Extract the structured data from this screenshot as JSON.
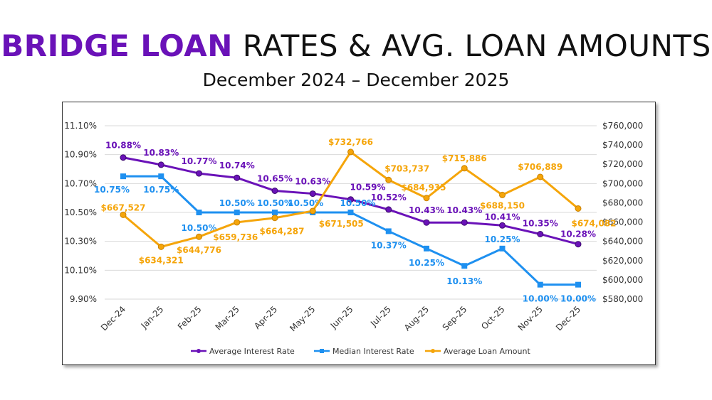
{
  "title": {
    "highlight": "BRIDGE LOAN",
    "rest": "RATES & AVG. LOAN AMOUNTS"
  },
  "subtitle": "December 2024 – December 2025",
  "chart_data": {
    "type": "line",
    "categories": [
      "Dec-24",
      "Jan-25",
      "Feb-25",
      "Mar-25",
      "Apr-25",
      "May-25",
      "Jun-25",
      "Jul-25",
      "Aug-25",
      "Sep-25",
      "Oct-25",
      "Nov-25",
      "Dec-25"
    ],
    "left_axis": {
      "min": 9.9,
      "max": 11.1,
      "step": 0.2,
      "ticks": [
        "9.90%",
        "10.10%",
        "10.30%",
        "10.50%",
        "10.70%",
        "10.90%",
        "11.10%"
      ]
    },
    "right_axis": {
      "min": 580000,
      "max": 760000,
      "step": 20000,
      "ticks": [
        "$580,000",
        "$600,000",
        "$620,000",
        "$640,000",
        "$660,000",
        "$680,000",
        "$700,000",
        "$720,000",
        "$740,000",
        "$760,000"
      ]
    },
    "grid": true,
    "legend_position": "bottom",
    "series": [
      {
        "name": "Average Interest Rate",
        "axis": "left",
        "color": "#6a12b8",
        "marker": "circle",
        "values": [
          10.88,
          10.83,
          10.77,
          10.74,
          10.65,
          10.63,
          10.59,
          10.52,
          10.43,
          10.43,
          10.41,
          10.35,
          10.28
        ],
        "labels": [
          "10.88%",
          "10.83%",
          "10.77%",
          "10.74%",
          "10.65%",
          "10.63%",
          "10.59%",
          "10.52%",
          "10.43%",
          "10.43%",
          "10.41%",
          "10.35%",
          "10.28%"
        ]
      },
      {
        "name": "Median Interest Rate",
        "axis": "left",
        "color": "#1e90f0",
        "marker": "square",
        "values": [
          10.75,
          10.75,
          10.5,
          10.5,
          10.5,
          10.5,
          10.5,
          10.37,
          10.25,
          10.13,
          10.25,
          10.0,
          10.0
        ],
        "labels": [
          "10.75%",
          "10.75%",
          "10.50%",
          "10.50%",
          "10.50%",
          "10.50%",
          "10.50%",
          "10.37%",
          "10.25%",
          "10.13%",
          "10.25%",
          "10.00%",
          "10.00%"
        ]
      },
      {
        "name": "Average Loan Amount",
        "axis": "right",
        "color": "#f5a50a",
        "marker": "circle",
        "values": [
          667527,
          634321,
          644776,
          659736,
          664287,
          671505,
          732766,
          703737,
          684935,
          715886,
          688150,
          706889,
          674082
        ],
        "labels": [
          "$667,527",
          "$634,321",
          "$644,776",
          "$659,736",
          "$664,287",
          "$671,505",
          "$732,766",
          "$703,737",
          "$684,935",
          "$715,886",
          "$688,150",
          "$706,889",
          "$674,082"
        ]
      }
    ]
  }
}
